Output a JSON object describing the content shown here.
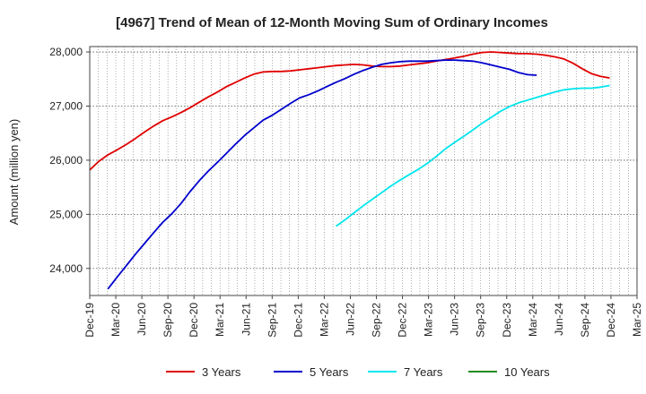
{
  "chart_data": {
    "type": "line",
    "title": "[4967]  Trend of Mean of 12-Month Moving Sum of Ordinary Incomes",
    "xlabel": "",
    "ylabel": "Amount (million yen)",
    "ylim": [
      23500,
      28100
    ],
    "yticks": [
      24000,
      25000,
      26000,
      27000,
      28000
    ],
    "ytick_labels": [
      "24,000",
      "25,000",
      "26,000",
      "27,000",
      "28,000"
    ],
    "x_start": "Dec-19",
    "x_end": "Mar-25",
    "x_ticks": [
      "Dec-19",
      "Mar-20",
      "Jun-20",
      "Sep-20",
      "Dec-20",
      "Mar-21",
      "Jun-21",
      "Sep-21",
      "Dec-21",
      "Mar-22",
      "Jun-22",
      "Sep-22",
      "Dec-22",
      "Mar-23",
      "Jun-23",
      "Sep-23",
      "Dec-23",
      "Mar-24",
      "Jun-24",
      "Sep-24",
      "Dec-24",
      "Mar-25"
    ],
    "grid": true,
    "legend_position": "bottom",
    "series": [
      {
        "name": "3 Years",
        "color": "#e00000",
        "x": [
          0,
          1,
          2,
          3,
          4,
          5,
          6,
          7,
          8,
          9,
          10,
          11,
          12,
          13,
          14,
          15,
          16,
          17,
          18,
          19,
          20,
          21,
          22,
          23,
          24,
          25,
          26,
          27,
          28,
          29,
          30,
          31,
          32,
          33,
          34,
          35,
          36,
          37,
          38,
          39,
          40,
          41,
          42,
          43,
          44,
          45,
          46,
          47,
          48,
          49,
          50,
          51,
          52,
          53,
          54,
          55,
          56,
          57,
          58,
          59,
          60
        ],
        "values": [
          25820,
          25980,
          26100,
          26190,
          26290,
          26400,
          26520,
          26630,
          26730,
          26800,
          26880,
          26970,
          27070,
          27170,
          27260,
          27360,
          27440,
          27520,
          27590,
          27630,
          27640,
          27640,
          27650,
          27670,
          27690,
          27710,
          27730,
          27750,
          27760,
          27770,
          27760,
          27740,
          27730,
          27730,
          27740,
          27760,
          27780,
          27800,
          27830,
          27860,
          27890,
          27920,
          27960,
          27990,
          28000,
          27990,
          27980,
          27970,
          27970,
          27960,
          27940,
          27910,
          27870,
          27790,
          27690,
          27600,
          27550,
          27520,
          null,
          null,
          null
        ]
      },
      {
        "name": "5 Years",
        "color": "#0000cc",
        "x": [
          0,
          1,
          2,
          3,
          4,
          5,
          6,
          7,
          8,
          9,
          10,
          11,
          12,
          13,
          14,
          15,
          16,
          17,
          18,
          19,
          20,
          21,
          22,
          23,
          24,
          25,
          26,
          27,
          28,
          29,
          30,
          31,
          32,
          33,
          34,
          35,
          36,
          37,
          38,
          39,
          40,
          41,
          42,
          43,
          44,
          45,
          46,
          47,
          48,
          49,
          50,
          51,
          52,
          53,
          54,
          55,
          56,
          57,
          58,
          59,
          60
        ],
        "values": [
          null,
          null,
          23620,
          23840,
          24050,
          24260,
          24460,
          24660,
          24850,
          25010,
          25200,
          25420,
          25620,
          25800,
          25960,
          26130,
          26300,
          26460,
          26600,
          26740,
          26830,
          26940,
          27050,
          27150,
          27210,
          27280,
          27360,
          27440,
          27510,
          27590,
          27660,
          27720,
          27770,
          27800,
          27820,
          27830,
          27830,
          27830,
          27840,
          27850,
          27850,
          27840,
          27830,
          27800,
          27760,
          27720,
          27680,
          27620,
          27580,
          27570,
          null,
          null,
          null,
          null,
          null,
          null,
          null,
          null,
          null,
          null,
          null
        ]
      },
      {
        "name": "7 Years",
        "color": "#00e5ee",
        "x": [
          0,
          1,
          2,
          3,
          4,
          5,
          6,
          7,
          8,
          9,
          10,
          11,
          12,
          13,
          14,
          15,
          16,
          17,
          18,
          19,
          20,
          21,
          22,
          23,
          24,
          25,
          26,
          27,
          28,
          29,
          30,
          31,
          32,
          33,
          34,
          35,
          36,
          37,
          38,
          39,
          40,
          41,
          42,
          43,
          44,
          45,
          46,
          47,
          48,
          49,
          50,
          51,
          52,
          53,
          54,
          55,
          56,
          57,
          58,
          59,
          60
        ],
        "values": [
          null,
          null,
          null,
          null,
          null,
          null,
          null,
          null,
          null,
          null,
          null,
          null,
          null,
          null,
          null,
          null,
          null,
          null,
          null,
          null,
          null,
          null,
          null,
          null,
          null,
          null,
          null,
          null,
          null,
          null,
          null,
          null,
          null,
          null,
          null,
          null,
          null,
          null,
          null,
          null,
          null,
          null,
          null,
          null,
          null,
          null,
          null,
          null,
          null,
          null,
          null,
          null,
          null,
          null,
          null,
          null,
          null,
          null,
          null,
          null,
          null
        ]
      },
      {
        "name": "10 Years",
        "color": "#228b22",
        "x": [],
        "values": []
      }
    ],
    "series_7y_points": {
      "x": [
        27,
        28,
        29,
        30,
        31,
        32,
        33,
        34,
        35,
        36,
        37,
        38,
        39,
        40,
        41,
        42,
        43,
        44,
        45,
        46,
        47,
        48,
        49,
        50,
        51,
        52,
        53,
        54,
        55,
        56,
        57,
        58,
        59,
        60
      ],
      "values": [
        24780,
        24900,
        25030,
        25160,
        25280,
        25400,
        25520,
        25630,
        25730,
        25830,
        25940,
        26070,
        26210,
        26330,
        26440,
        26560,
        26680,
        26790,
        26900,
        26990,
        27060,
        27110,
        27160,
        27210,
        27260,
        27300,
        27320,
        27330,
        27330,
        27350,
        27380,
        null,
        null,
        null
      ]
    }
  }
}
